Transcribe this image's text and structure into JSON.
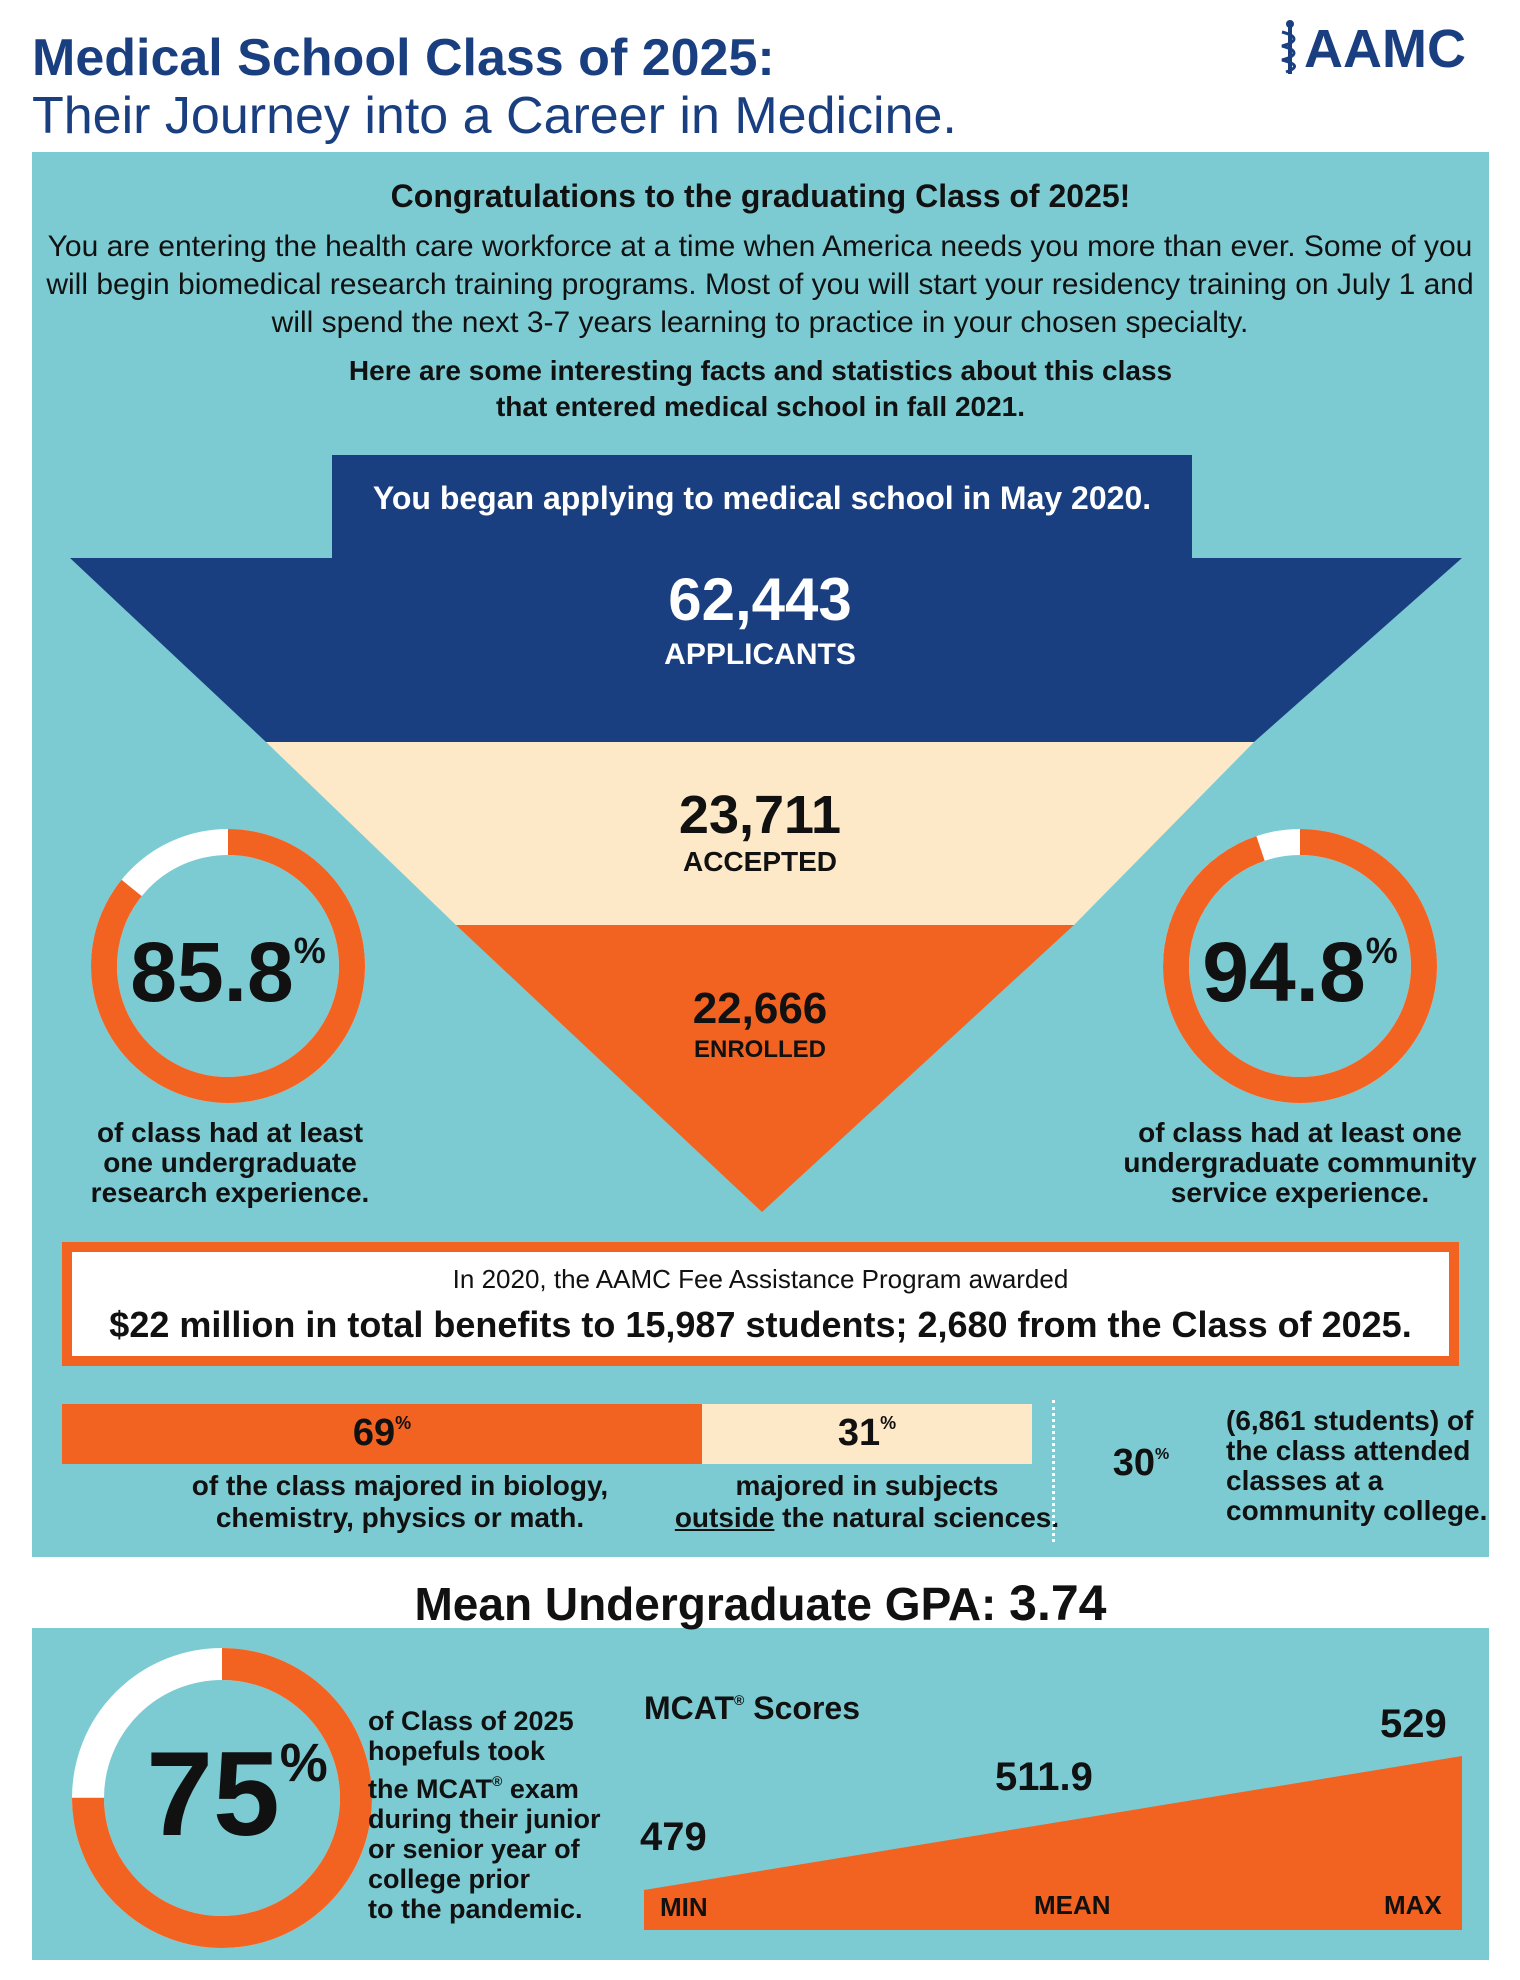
{
  "header": {
    "title_line1": "Medical School Class of 2025:",
    "title_line2": "Their Journey into a Career in Medicine.",
    "logo_text": "AAMC"
  },
  "intro": {
    "congrats": "Congratulations to the graduating Class of 2025!",
    "paragraph": "You are entering the health care workforce at a time when America needs you more than ever. Some of you will begin biomedical research training programs. Most of you will start your residency training on July 1 and will spend the next 3-7 years learning to practice in your chosen specialty.",
    "facts_line1": "Here are some interesting facts and statistics about this class",
    "facts_line2": "that entered medical school in fall 2021."
  },
  "funnel": {
    "began": "You began applying to medical school in May 2020.",
    "applicants_value": "62,443",
    "applicants_label": "APPLICANTS",
    "accepted_value": "23,711",
    "accepted_label": "ACCEPTED",
    "enrolled_value": "22,666",
    "enrolled_label": "ENROLLED"
  },
  "research": {
    "value": "85.8",
    "fraction": 0.858,
    "symbol": "%",
    "caption_line1": "of class had at least",
    "caption_line2": "one undergraduate",
    "caption_line3": "research experience."
  },
  "service": {
    "value": "94.8",
    "fraction": 0.948,
    "symbol": "%",
    "caption_line1": "of class had at least one",
    "caption_line2": "undergraduate community",
    "caption_line3": "service experience."
  },
  "fee_assistance": {
    "line1": "In 2020, the AAMC Fee Assistance Program awarded",
    "line2": "$22 million in total benefits to 15,987 students; 2,680 from the Class of 2025."
  },
  "majors": {
    "science_value": "69",
    "science_fraction": 0.69,
    "other_value": "31",
    "other_fraction": 0.31,
    "symbol": "%",
    "science_caption_line1": "of the class majored in biology,",
    "science_caption_line2": "chemistry, physics or math.",
    "other_caption_line1": "majored in subjects",
    "other_caption_underlined": "outside",
    "other_caption_rest": " the natural sciences."
  },
  "community_college": {
    "value": "30",
    "fraction": 0.3,
    "symbol": "%",
    "caption_line1": "(6,861 students) of",
    "caption_line2": "the class attended",
    "caption_line3": "classes at a",
    "caption_line4": "community college."
  },
  "gpa": {
    "label": "Mean Undergraduate GPA: ",
    "value": "3.74"
  },
  "mcat_timing": {
    "value": "75",
    "fraction": 0.75,
    "symbol": "%",
    "caption_line1": "of Class of 2025",
    "caption_line2": "hopefuls took",
    "caption_line3_a": "the MCAT",
    "caption_reg": "®",
    "caption_line3_b": " exam",
    "caption_line4_a": "during their ",
    "caption_line4_b": "junior",
    "caption_line5_a": "or senior year",
    "caption_line5_b": " of",
    "caption_line6": "college prior",
    "caption_line7": "to the pandemic."
  },
  "mcat_scores": {
    "title": "MCAT",
    "title_reg": "®",
    "title_rest": " Scores",
    "min_value": "479",
    "mean_value": "511.9",
    "max_value": "529",
    "min_label": "MIN",
    "mean_label": "MEAN",
    "max_label": "MAX"
  },
  "colors": {
    "navy": "#1a3f80",
    "teal": "#7ccbd3",
    "orange": "#f26322",
    "cream": "#fde9c8",
    "white": "#ffffff"
  }
}
